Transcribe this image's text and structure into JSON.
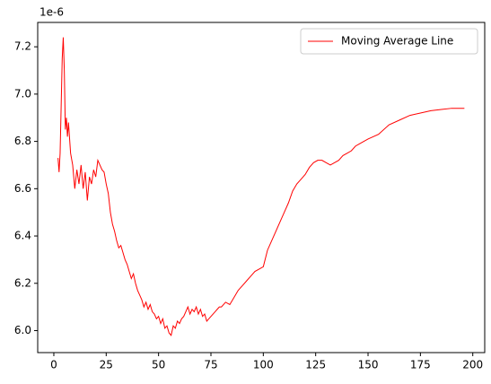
{
  "chart_data": {
    "type": "line",
    "y_offset_label": "1e-6",
    "x": [
      2,
      2.5,
      3,
      3.5,
      4,
      4.5,
      5,
      5.5,
      6,
      6.5,
      7,
      8,
      9,
      10,
      11,
      12,
      13,
      14,
      15,
      16,
      17,
      18,
      19,
      20,
      21,
      22,
      23,
      24,
      25,
      26,
      27,
      28,
      29,
      30,
      31,
      32,
      33,
      34,
      35,
      36,
      37,
      38,
      39,
      40,
      41,
      42,
      43,
      44,
      45,
      46,
      47,
      48,
      49,
      50,
      51,
      52,
      53,
      54,
      55,
      56,
      57,
      58,
      59,
      60,
      61,
      62,
      63,
      64,
      65,
      66,
      67,
      68,
      69,
      70,
      71,
      72,
      73,
      74,
      75,
      76,
      77,
      78,
      79,
      80,
      82,
      84,
      86,
      88,
      90,
      92,
      94,
      96,
      98,
      100,
      102,
      104,
      106,
      108,
      110,
      112,
      114,
      116,
      118,
      120,
      122,
      124,
      126,
      128,
      130,
      132,
      134,
      136,
      138,
      140,
      142,
      144,
      146,
      148,
      150,
      155,
      160,
      165,
      170,
      175,
      180,
      185,
      190,
      196
    ],
    "series": [
      {
        "name": "Moving Average Line",
        "color": "#ff0000",
        "values": [
          6.73,
          6.67,
          6.75,
          6.95,
          7.15,
          7.24,
          7.1,
          6.85,
          6.9,
          6.82,
          6.88,
          6.75,
          6.7,
          6.6,
          6.68,
          6.62,
          6.7,
          6.6,
          6.67,
          6.55,
          6.65,
          6.62,
          6.68,
          6.65,
          6.72,
          6.7,
          6.68,
          6.67,
          6.62,
          6.58,
          6.5,
          6.45,
          6.42,
          6.38,
          6.35,
          6.36,
          6.33,
          6.3,
          6.28,
          6.25,
          6.22,
          6.24,
          6.2,
          6.17,
          6.15,
          6.13,
          6.1,
          6.12,
          6.09,
          6.11,
          6.08,
          6.07,
          6.05,
          6.06,
          6.03,
          6.05,
          6.01,
          6.02,
          5.99,
          5.98,
          6.02,
          6.01,
          6.04,
          6.03,
          6.05,
          6.06,
          6.08,
          6.1,
          6.07,
          6.09,
          6.08,
          6.1,
          6.07,
          6.09,
          6.06,
          6.07,
          6.04,
          6.05,
          6.06,
          6.07,
          6.08,
          6.09,
          6.1,
          6.1,
          6.12,
          6.11,
          6.14,
          6.17,
          6.19,
          6.21,
          6.23,
          6.25,
          6.26,
          6.27,
          6.34,
          6.38,
          6.42,
          6.46,
          6.5,
          6.54,
          6.59,
          6.62,
          6.64,
          6.66,
          6.69,
          6.71,
          6.72,
          6.72,
          6.71,
          6.7,
          6.71,
          6.72,
          6.74,
          6.75,
          6.76,
          6.78,
          6.79,
          6.8,
          6.81,
          6.83,
          6.87,
          6.89,
          6.91,
          6.92,
          6.93,
          6.935,
          6.94,
          6.94
        ]
      }
    ],
    "xlim": [
      -7.7,
      205.7
    ],
    "xticks": [
      0,
      25,
      50,
      75,
      100,
      125,
      150,
      175,
      200
    ],
    "ylim": [
      5.907,
      7.303
    ],
    "yticks": [
      {
        "value": 6,
        "label": "6.0"
      },
      {
        "value": 6.2,
        "label": "6.2"
      },
      {
        "value": 6.4,
        "label": "6.4"
      },
      {
        "value": 6.6,
        "label": "6.6"
      },
      {
        "value": 6.8,
        "label": "6.8"
      },
      {
        "value": 7,
        "label": "7.0"
      },
      {
        "value": 7.2,
        "label": "7.2"
      }
    ],
    "grid": false,
    "legend": "upper right"
  }
}
